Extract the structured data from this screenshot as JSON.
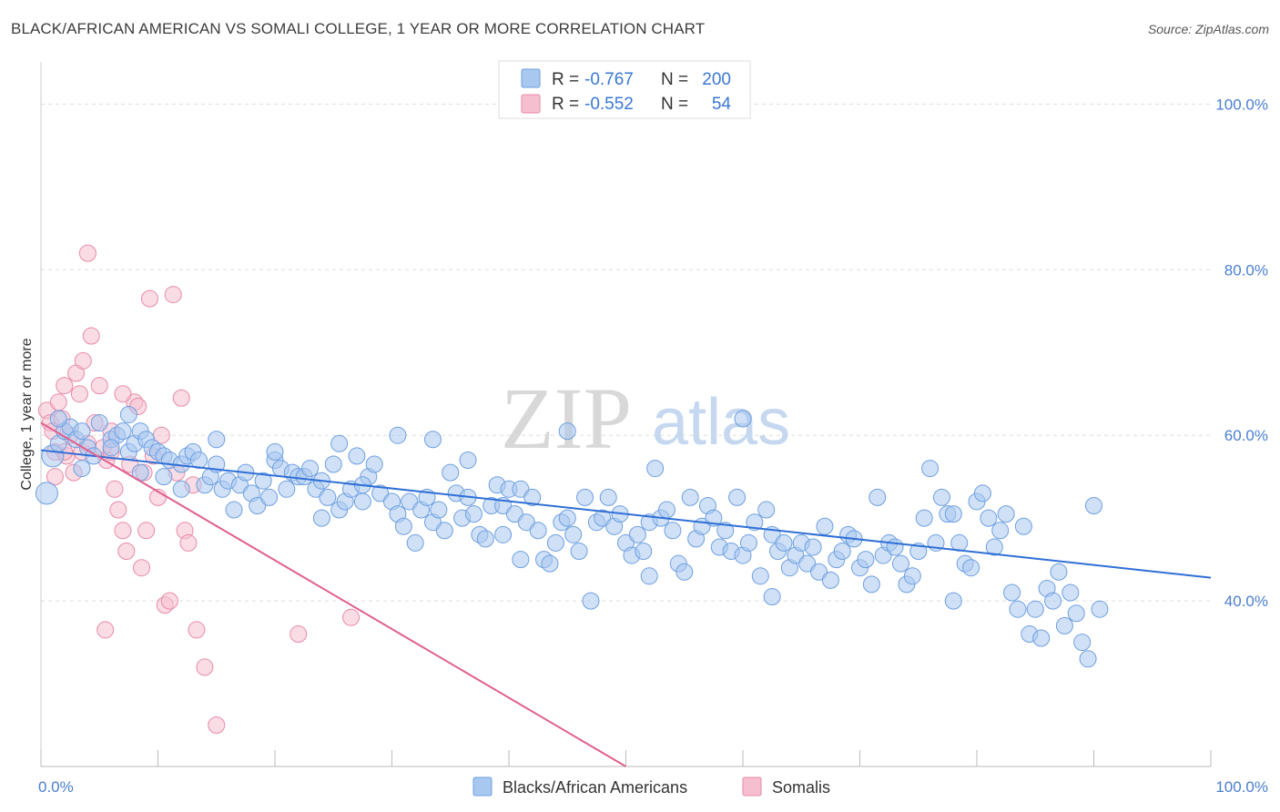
{
  "title": "BLACK/AFRICAN AMERICAN VS SOMALI COLLEGE, 1 YEAR OR MORE CORRELATION CHART",
  "source": "Source: ZipAtlas.com",
  "watermark": {
    "zip": "ZIP",
    "atlas": "atlas"
  },
  "colors": {
    "blue_fill": "#a9c8f0",
    "blue_stroke": "#6d9fe0",
    "blue_line": "#2f6fd6",
    "pink_fill": "#f6bfd0",
    "pink_stroke": "#e98aa8",
    "pink_line": "#e0608e",
    "grid": "#dddddd",
    "tick_label": "#4a7fd0"
  },
  "chart_data": {
    "type": "scatter",
    "title": "BLACK/AFRICAN AMERICAN VS SOMALI COLLEGE, 1 YEAR OR MORE CORRELATION CHART",
    "xlabel": "",
    "ylabel": "College, 1 year or more",
    "xlim": [
      0,
      100
    ],
    "ylim": [
      20,
      104
    ],
    "x_tick_labels": [
      "0.0%",
      "100.0%"
    ],
    "y_ticks": [
      40,
      60,
      80,
      100
    ],
    "y_tick_labels": [
      "40.0%",
      "60.0%",
      "80.0%",
      "100.0%"
    ],
    "grid": true,
    "legend_position": "top-center",
    "legend": [
      {
        "r_label": "R =",
        "r": "-0.767",
        "n_label": "N =",
        "n": "200"
      },
      {
        "r_label": "R =",
        "r": "-0.552",
        "n_label": "N =",
        "n": "54"
      }
    ],
    "series": [
      {
        "name": "Blacks/African Americans",
        "color": "#a9c8f0",
        "trend": {
          "x": [
            0,
            100
          ],
          "y": [
            58.2,
            42.8
          ]
        },
        "points": [
          [
            0.5,
            53.0
          ],
          [
            1,
            57.5
          ],
          [
            1.5,
            59.0
          ],
          [
            2,
            60.5
          ],
          [
            2.5,
            61.0
          ],
          [
            3,
            59.5
          ],
          [
            3.5,
            60.5
          ],
          [
            4,
            58.5
          ],
          [
            5,
            61.5
          ],
          [
            6,
            59.5
          ],
          [
            6.5,
            60.0
          ],
          [
            7,
            60.5
          ],
          [
            7.5,
            58.0
          ],
          [
            8,
            59.0
          ],
          [
            8.5,
            60.5
          ],
          [
            9,
            59.5
          ],
          [
            9.5,
            58.5
          ],
          [
            10,
            58.0
          ],
          [
            10.5,
            57.5
          ],
          [
            11,
            57.0
          ],
          [
            12,
            56.5
          ],
          [
            12.5,
            57.5
          ],
          [
            13,
            58.0
          ],
          [
            13.5,
            57.0
          ],
          [
            14,
            54.0
          ],
          [
            14.5,
            55.0
          ],
          [
            15,
            56.5
          ],
          [
            15.5,
            53.5
          ],
          [
            16,
            54.5
          ],
          [
            17,
            54.0
          ],
          [
            17.5,
            55.5
          ],
          [
            18,
            53.0
          ],
          [
            18.5,
            51.5
          ],
          [
            19,
            54.5
          ],
          [
            19.5,
            52.5
          ],
          [
            20,
            57.0
          ],
          [
            20.5,
            56.0
          ],
          [
            21,
            53.5
          ],
          [
            21.5,
            55.5
          ],
          [
            22,
            55.0
          ],
          [
            22.5,
            55.0
          ],
          [
            23,
            56.0
          ],
          [
            23.5,
            53.5
          ],
          [
            24,
            54.5
          ],
          [
            24.5,
            52.5
          ],
          [
            25,
            56.5
          ],
          [
            25.5,
            51.0
          ],
          [
            26,
            52.0
          ],
          [
            26.5,
            53.5
          ],
          [
            27,
            57.5
          ],
          [
            27.5,
            52.0
          ],
          [
            28,
            55.0
          ],
          [
            28.5,
            56.5
          ],
          [
            29,
            53.0
          ],
          [
            30,
            52.0
          ],
          [
            30.5,
            50.5
          ],
          [
            31,
            49.0
          ],
          [
            31.5,
            52.0
          ],
          [
            32,
            47.0
          ],
          [
            32.5,
            51.0
          ],
          [
            33,
            52.5
          ],
          [
            33.5,
            49.5
          ],
          [
            34,
            51.0
          ],
          [
            34.5,
            48.5
          ],
          [
            35,
            55.5
          ],
          [
            35.5,
            53.0
          ],
          [
            36,
            50.0
          ],
          [
            36.5,
            52.5
          ],
          [
            37,
            50.5
          ],
          [
            37.5,
            48.0
          ],
          [
            38,
            47.5
          ],
          [
            38.5,
            51.5
          ],
          [
            39,
            54.0
          ],
          [
            39.5,
            51.5
          ],
          [
            40,
            53.5
          ],
          [
            40.5,
            50.5
          ],
          [
            41,
            53.5
          ],
          [
            41.5,
            49.5
          ],
          [
            42,
            52.5
          ],
          [
            42.5,
            48.5
          ],
          [
            43,
            45.0
          ],
          [
            43.5,
            44.5
          ],
          [
            44,
            47.0
          ],
          [
            44.5,
            49.5
          ],
          [
            45,
            50.0
          ],
          [
            45.5,
            48.0
          ],
          [
            46,
            46.0
          ],
          [
            46.5,
            52.5
          ],
          [
            47,
            40.0
          ],
          [
            47.5,
            49.5
          ],
          [
            48,
            50.0
          ],
          [
            48.5,
            52.5
          ],
          [
            49,
            49.0
          ],
          [
            49.5,
            50.5
          ],
          [
            50,
            47.0
          ],
          [
            50.5,
            45.5
          ],
          [
            51,
            48.0
          ],
          [
            51.5,
            46.0
          ],
          [
            52,
            49.5
          ],
          [
            52.5,
            56.0
          ],
          [
            53,
            50.0
          ],
          [
            53.5,
            51.0
          ],
          [
            54,
            48.5
          ],
          [
            54.5,
            44.5
          ],
          [
            55,
            43.5
          ],
          [
            55.5,
            52.5
          ],
          [
            56,
            47.5
          ],
          [
            56.5,
            49.0
          ],
          [
            57,
            51.5
          ],
          [
            57.5,
            50.0
          ],
          [
            58,
            46.5
          ],
          [
            58.5,
            48.5
          ],
          [
            59,
            46.0
          ],
          [
            59.5,
            52.5
          ],
          [
            60,
            45.5
          ],
          [
            60.5,
            47.0
          ],
          [
            61,
            49.5
          ],
          [
            61.5,
            43.0
          ],
          [
            62,
            51.0
          ],
          [
            62.5,
            48.0
          ],
          [
            63,
            46.0
          ],
          [
            63.5,
            47.0
          ],
          [
            64,
            44.0
          ],
          [
            64.5,
            45.5
          ],
          [
            65,
            47.0
          ],
          [
            65.5,
            44.5
          ],
          [
            66,
            46.5
          ],
          [
            66.5,
            43.5
          ],
          [
            67,
            49.0
          ],
          [
            67.5,
            42.5
          ],
          [
            68,
            45.0
          ],
          [
            68.5,
            46.0
          ],
          [
            69,
            48.0
          ],
          [
            69.5,
            47.5
          ],
          [
            70,
            44.0
          ],
          [
            70.5,
            45.0
          ],
          [
            71,
            42.0
          ],
          [
            71.5,
            52.5
          ],
          [
            72,
            45.5
          ],
          [
            72.5,
            47.0
          ],
          [
            73,
            46.5
          ],
          [
            73.5,
            44.5
          ],
          [
            74,
            42.0
          ],
          [
            74.5,
            43.0
          ],
          [
            75,
            46.0
          ],
          [
            75.5,
            50.0
          ],
          [
            76,
            56.0
          ],
          [
            76.5,
            47.0
          ],
          [
            77,
            52.5
          ],
          [
            77.5,
            50.5
          ],
          [
            78,
            50.5
          ],
          [
            78.5,
            47.0
          ],
          [
            79,
            44.5
          ],
          [
            79.5,
            44.0
          ],
          [
            80,
            52.0
          ],
          [
            80.5,
            53.0
          ],
          [
            81,
            50.0
          ],
          [
            81.5,
            46.5
          ],
          [
            82,
            48.5
          ],
          [
            82.5,
            50.5
          ],
          [
            83,
            41.0
          ],
          [
            83.5,
            39.0
          ],
          [
            84,
            49.0
          ],
          [
            84.5,
            36.0
          ],
          [
            85,
            39.0
          ],
          [
            85.5,
            35.5
          ],
          [
            86,
            41.5
          ],
          [
            86.5,
            40.0
          ],
          [
            87,
            43.5
          ],
          [
            87.5,
            37.0
          ],
          [
            88,
            41.0
          ],
          [
            88.5,
            38.5
          ],
          [
            89,
            35.0
          ],
          [
            89.5,
            33.0
          ],
          [
            90,
            51.5
          ],
          [
            90.5,
            39.0
          ],
          [
            78.0,
            40.0
          ],
          [
            60.0,
            62.0
          ],
          [
            45.0,
            60.5
          ],
          [
            62.5,
            40.5
          ],
          [
            10.5,
            55.0
          ],
          [
            3.5,
            56.0
          ],
          [
            6.0,
            58.5
          ],
          [
            1.5,
            62.0
          ],
          [
            4.5,
            57.5
          ],
          [
            7.5,
            62.5
          ],
          [
            30.5,
            60.0
          ],
          [
            33.5,
            59.5
          ],
          [
            20.0,
            58.0
          ],
          [
            25.5,
            59.0
          ],
          [
            15.0,
            59.5
          ],
          [
            36.5,
            57.0
          ],
          [
            27.5,
            54.0
          ],
          [
            16.5,
            51.0
          ],
          [
            12.0,
            53.5
          ],
          [
            8.5,
            55.5
          ],
          [
            39.5,
            48.0
          ],
          [
            24.0,
            50.0
          ],
          [
            52.0,
            43.0
          ],
          [
            41.0,
            45.0
          ]
        ]
      },
      {
        "name": "Somalis",
        "color": "#f6bfd0",
        "trend": {
          "x": [
            0,
            50
          ],
          "y": [
            61.5,
            20.0
          ]
        },
        "points": [
          [
            0.5,
            63.0
          ],
          [
            0.8,
            61.5
          ],
          [
            1,
            60.5
          ],
          [
            1.2,
            58.0
          ],
          [
            1.5,
            64.0
          ],
          [
            1.8,
            62.0
          ],
          [
            2,
            66.0
          ],
          [
            2.2,
            57.5
          ],
          [
            2.5,
            60.0
          ],
          [
            2.8,
            55.5
          ],
          [
            3,
            67.5
          ],
          [
            3.3,
            65.0
          ],
          [
            3.6,
            69.0
          ],
          [
            4,
            82.0
          ],
          [
            4.3,
            72.0
          ],
          [
            4.6,
            61.5
          ],
          [
            5,
            66.0
          ],
          [
            5.3,
            58.5
          ],
          [
            5.6,
            57.0
          ],
          [
            6,
            60.5
          ],
          [
            6.3,
            53.5
          ],
          [
            6.6,
            51.0
          ],
          [
            7,
            48.5
          ],
          [
            7.3,
            46.0
          ],
          [
            7.6,
            56.5
          ],
          [
            8,
            64.0
          ],
          [
            8.3,
            63.5
          ],
          [
            8.6,
            44.0
          ],
          [
            9,
            48.5
          ],
          [
            9.3,
            76.5
          ],
          [
            9.6,
            57.5
          ],
          [
            10,
            52.5
          ],
          [
            10.3,
            60.0
          ],
          [
            10.6,
            39.5
          ],
          [
            11,
            40.0
          ],
          [
            11.3,
            77.0
          ],
          [
            11.6,
            55.5
          ],
          [
            12,
            64.5
          ],
          [
            12.3,
            48.5
          ],
          [
            12.6,
            47.0
          ],
          [
            13,
            54.0
          ],
          [
            13.3,
            36.5
          ],
          [
            14,
            32.0
          ],
          [
            15,
            25.0
          ],
          [
            2.0,
            58.0
          ],
          [
            3.5,
            58.0
          ],
          [
            1.2,
            55.0
          ],
          [
            4.0,
            59.0
          ],
          [
            5.5,
            36.5
          ],
          [
            6.0,
            58.0
          ],
          [
            7.0,
            65.0
          ],
          [
            22.0,
            36.0
          ],
          [
            26.5,
            38.0
          ],
          [
            8.8,
            55.5
          ]
        ]
      }
    ]
  },
  "bottom_legend": [
    {
      "label": "Blacks/African Americans"
    },
    {
      "label": "Somalis"
    }
  ]
}
